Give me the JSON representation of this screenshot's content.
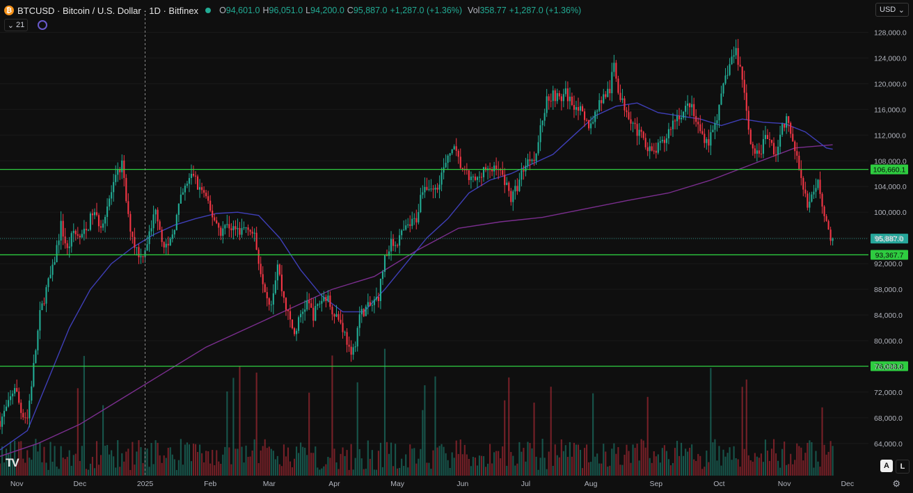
{
  "header": {
    "symbol": "BTCUSD · Bitcoin / U.S. Dollar · 1D · Bitfinex",
    "open_label": "O",
    "open": "94,601.0",
    "high_label": "H",
    "high": "96,051.0",
    "low_label": "L",
    "low": "94,200.0",
    "close_label": "C",
    "close": "95,887.0",
    "change": "+1,287.0 (+1.36%)",
    "vol_label": "Vol",
    "vol": "358.77",
    "vol_change": "+1,287.0 (+1.36%)",
    "indicator_count": "21",
    "currency": "USD"
  },
  "footer": {
    "logo": "TV",
    "auto_btn": "A",
    "log_btn": "L"
  },
  "colors": {
    "background": "#0f0f0f",
    "up": "#22ab94",
    "down": "#f23645",
    "hline": "#2ecc40",
    "ma_fast": "#3f3fb8",
    "ma_slow": "#7b2e8f",
    "last_price": "#26a69a"
  },
  "chart_data": {
    "type": "candlestick",
    "title": "BTCUSD · Bitcoin / U.S. Dollar · 1D · Bitfinex",
    "ylim": [
      59000,
      130000
    ],
    "y_ticks": [
      64000,
      68000,
      72000,
      76000,
      80000,
      84000,
      88000,
      92000,
      96000,
      100000,
      104000,
      108000,
      112000,
      116000,
      120000,
      124000,
      128000
    ],
    "y_tick_labels": [
      "64,000.0",
      "68,000.0",
      "72,000.0",
      "76,000.0",
      "80,000.0",
      "84,000.0",
      "88,000.0",
      "92,000.0",
      "96,000.0",
      "100,000.0",
      "104,000.0",
      "108,000.0",
      "112,000.0",
      "116,000.0",
      "120,000.0",
      "124,000.0",
      "128,000.0"
    ],
    "x_range_days": [
      -8,
      405
    ],
    "x_ticks": [
      {
        "label": "Nov",
        "day": 0
      },
      {
        "label": "Dec",
        "day": 30
      },
      {
        "label": "2025",
        "day": 61
      },
      {
        "label": "Feb",
        "day": 92
      },
      {
        "label": "Mar",
        "day": 120
      },
      {
        "label": "Apr",
        "day": 151
      },
      {
        "label": "May",
        "day": 181
      },
      {
        "label": "Jun",
        "day": 212
      },
      {
        "label": "Jul",
        "day": 242
      },
      {
        "label": "Aug",
        "day": 273
      },
      {
        "label": "Sep",
        "day": 304
      },
      {
        "label": "Oct",
        "day": 334
      },
      {
        "label": "Nov",
        "day": 365
      },
      {
        "label": "Dec",
        "day": 395
      }
    ],
    "crosshair_day": 61,
    "price_path": [
      [
        -8,
        67500
      ],
      [
        -4,
        70000
      ],
      [
        -1,
        73000
      ],
      [
        2,
        69000
      ],
      [
        5,
        68000
      ],
      [
        8,
        76000
      ],
      [
        11,
        84000
      ],
      [
        14,
        88000
      ],
      [
        17,
        91000
      ],
      [
        21,
        98000
      ],
      [
        24,
        94000
      ],
      [
        27,
        97000
      ],
      [
        30,
        96000
      ],
      [
        33,
        97000
      ],
      [
        36,
        100000
      ],
      [
        40,
        98000
      ],
      [
        44,
        102000
      ],
      [
        48,
        106000
      ],
      [
        50,
        107500
      ],
      [
        53,
        99000
      ],
      [
        56,
        95000
      ],
      [
        59,
        93000
      ],
      [
        61,
        94500
      ],
      [
        64,
        97500
      ],
      [
        66,
        101000
      ],
      [
        69,
        96000
      ],
      [
        72,
        94000
      ],
      [
        75,
        98000
      ],
      [
        78,
        102000
      ],
      [
        81,
        104500
      ],
      [
        84,
        106000
      ],
      [
        86,
        104000
      ],
      [
        89,
        103000
      ],
      [
        92,
        100000
      ],
      [
        94,
        99000
      ],
      [
        97,
        97000
      ],
      [
        100,
        98000
      ],
      [
        103,
        97500
      ],
      [
        106,
        97000
      ],
      [
        110,
        98000
      ],
      [
        113,
        96000
      ],
      [
        116,
        91000
      ],
      [
        119,
        87000
      ],
      [
        121,
        86000
      ],
      [
        124,
        92000
      ],
      [
        126,
        88000
      ],
      [
        129,
        84000
      ],
      [
        132,
        81000
      ],
      [
        135,
        84000
      ],
      [
        138,
        86000
      ],
      [
        141,
        84000
      ],
      [
        144,
        86000
      ],
      [
        147,
        87000
      ],
      [
        150,
        85000
      ],
      [
        153,
        83500
      ],
      [
        155,
        82000
      ],
      [
        157,
        80000
      ],
      [
        159,
        77000
      ],
      [
        161,
        80000
      ],
      [
        163,
        84000
      ],
      [
        166,
        85000
      ],
      [
        169,
        85500
      ],
      [
        172,
        87000
      ],
      [
        175,
        93000
      ],
      [
        178,
        95000
      ],
      [
        181,
        95500
      ],
      [
        184,
        97000
      ],
      [
        187,
        98000
      ],
      [
        190,
        99000
      ],
      [
        193,
        104000
      ],
      [
        196,
        104000
      ],
      [
        199,
        103500
      ],
      [
        202,
        106000
      ],
      [
        205,
        108000
      ],
      [
        207,
        110500
      ],
      [
        210,
        108000
      ],
      [
        213,
        106000
      ],
      [
        216,
        105000
      ],
      [
        219,
        105000
      ],
      [
        222,
        107000
      ],
      [
        225,
        106000
      ],
      [
        228,
        107500
      ],
      [
        230,
        106000
      ],
      [
        233,
        104500
      ],
      [
        235,
        102000
      ],
      [
        238,
        104000
      ],
      [
        241,
        107000
      ],
      [
        244,
        108500
      ],
      [
        247,
        109000
      ],
      [
        249,
        113000
      ],
      [
        252,
        117500
      ],
      [
        255,
        118500
      ],
      [
        258,
        117500
      ],
      [
        261,
        118500
      ],
      [
        264,
        117000
      ],
      [
        267,
        116500
      ],
      [
        270,
        114000
      ],
      [
        273,
        113500
      ],
      [
        276,
        116500
      ],
      [
        279,
        118000
      ],
      [
        282,
        119000
      ],
      [
        284,
        123000
      ],
      [
        287,
        117500
      ],
      [
        290,
        116000
      ],
      [
        293,
        114000
      ],
      [
        296,
        112000
      ],
      [
        299,
        111000
      ],
      [
        302,
        109000
      ],
      [
        305,
        110000
      ],
      [
        308,
        111000
      ],
      [
        311,
        113500
      ],
      [
        314,
        115000
      ],
      [
        317,
        115500
      ],
      [
        320,
        117000
      ],
      [
        323,
        114000
      ],
      [
        326,
        112000
      ],
      [
        329,
        111000
      ],
      [
        332,
        114000
      ],
      [
        334,
        116000
      ],
      [
        337,
        121000
      ],
      [
        340,
        124000
      ],
      [
        342,
        125000
      ],
      [
        345,
        121000
      ],
      [
        348,
        113000
      ],
      [
        350,
        110000
      ],
      [
        353,
        108500
      ],
      [
        356,
        112000
      ],
      [
        359,
        110500
      ],
      [
        361,
        109000
      ],
      [
        364,
        113000
      ],
      [
        366,
        114500
      ],
      [
        369,
        111000
      ],
      [
        371,
        108000
      ],
      [
        373,
        106000
      ],
      [
        376,
        101000
      ],
      [
        379,
        102500
      ],
      [
        381,
        104500
      ],
      [
        384,
        100000
      ],
      [
        387,
        96000
      ],
      [
        388,
        95887
      ]
    ],
    "ma_fast": [
      [
        -8,
        63000
      ],
      [
        5,
        66000
      ],
      [
        15,
        74000
      ],
      [
        25,
        82000
      ],
      [
        35,
        88000
      ],
      [
        45,
        92000
      ],
      [
        55,
        94500
      ],
      [
        65,
        96500
      ],
      [
        75,
        98000
      ],
      [
        85,
        99000
      ],
      [
        95,
        99800
      ],
      [
        105,
        100000
      ],
      [
        115,
        99500
      ],
      [
        125,
        96000
      ],
      [
        135,
        91000
      ],
      [
        145,
        87000
      ],
      [
        155,
        84500
      ],
      [
        165,
        84500
      ],
      [
        175,
        88000
      ],
      [
        185,
        92000
      ],
      [
        195,
        96000
      ],
      [
        205,
        99000
      ],
      [
        215,
        103000
      ],
      [
        225,
        105000
      ],
      [
        235,
        106000
      ],
      [
        245,
        107500
      ],
      [
        255,
        109000
      ],
      [
        265,
        112000
      ],
      [
        275,
        115000
      ],
      [
        285,
        116500
      ],
      [
        295,
        117000
      ],
      [
        305,
        115500
      ],
      [
        315,
        115000
      ],
      [
        325,
        114500
      ],
      [
        335,
        113500
      ],
      [
        345,
        114500
      ],
      [
        355,
        114000
      ],
      [
        365,
        113800
      ],
      [
        375,
        112500
      ],
      [
        385,
        110000
      ],
      [
        388,
        109800
      ]
    ],
    "ma_slow": [
      [
        -8,
        62000
      ],
      [
        10,
        64000
      ],
      [
        30,
        67000
      ],
      [
        50,
        71000
      ],
      [
        70,
        75000
      ],
      [
        90,
        79000
      ],
      [
        110,
        82000
      ],
      [
        130,
        85000
      ],
      [
        150,
        88000
      ],
      [
        170,
        90000
      ],
      [
        190,
        94000
      ],
      [
        210,
        97500
      ],
      [
        230,
        98500
      ],
      [
        250,
        99200
      ],
      [
        270,
        100500
      ],
      [
        290,
        101800
      ],
      [
        310,
        103000
      ],
      [
        330,
        105000
      ],
      [
        350,
        107500
      ],
      [
        370,
        110000
      ],
      [
        388,
        110500
      ]
    ],
    "horizontal_lines": [
      {
        "value": 106660.1,
        "label": "106,660.1"
      },
      {
        "value": 93367.7,
        "label": "93,367.7"
      },
      {
        "value": 76033.8,
        "label": "76,033.8"
      }
    ],
    "last_price": {
      "value": 95887.0,
      "label": "95,887.0"
    }
  }
}
